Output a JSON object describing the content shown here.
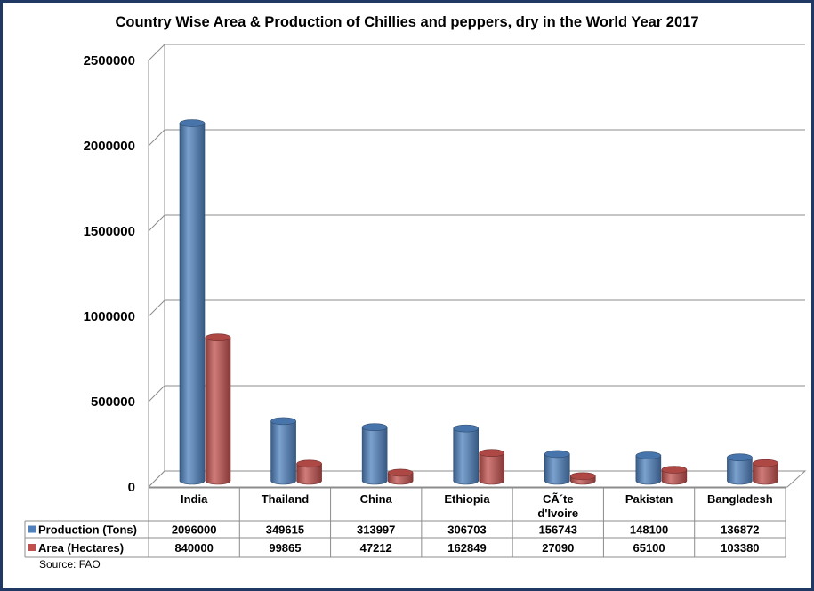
{
  "chart_data": {
    "type": "bar",
    "title": "Country Wise Area & Production of Chillies and peppers, dry in the World Year 2017",
    "categories": [
      "India",
      "Thailand",
      "China",
      "Ethiopia",
      "CÃ´te d'Ivoire",
      "Pakistan",
      "Bangladesh"
    ],
    "series": [
      {
        "name": "Production (Tons)",
        "color": "#4f81bd",
        "values": [
          2096000,
          349615,
          313997,
          306703,
          156743,
          148100,
          136872
        ]
      },
      {
        "name": "Area (Hectares)",
        "color": "#c0504d",
        "values": [
          840000,
          99865,
          47212,
          162849,
          27090,
          65100,
          103380
        ]
      }
    ],
    "ylim": [
      0,
      2500000
    ],
    "yticks": [
      "0",
      "500000",
      "1000000",
      "1500000",
      "2000000",
      "2500000"
    ],
    "grid": true,
    "legend": "data-table",
    "source": "Source: FAO"
  }
}
